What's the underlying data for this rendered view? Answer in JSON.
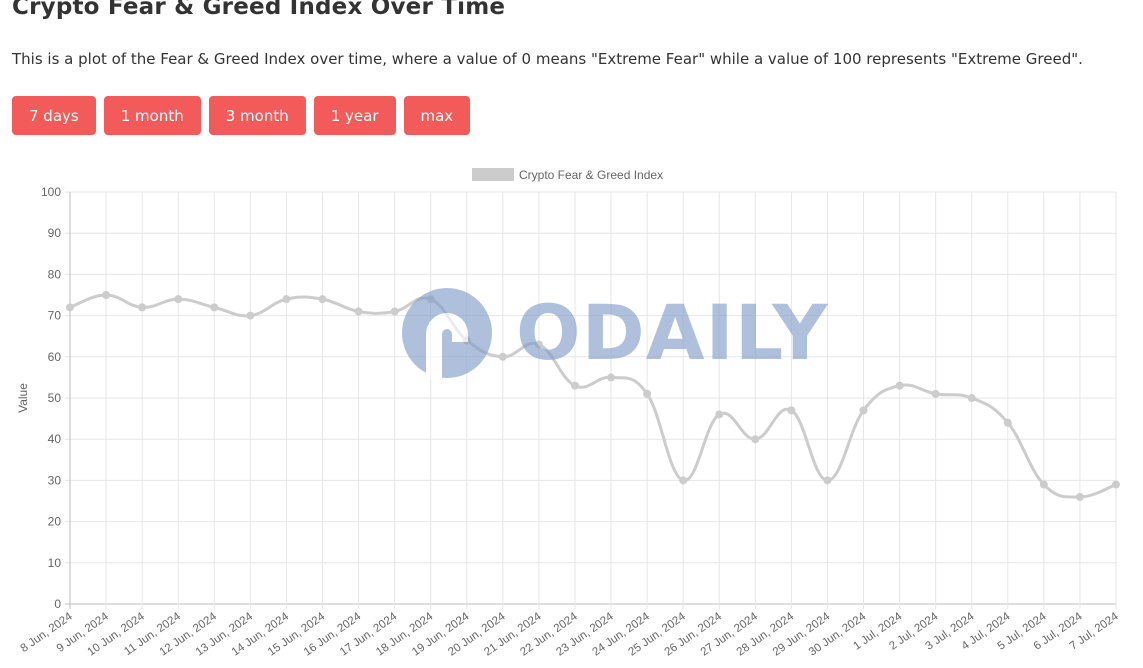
{
  "page": {
    "title": "Crypto Fear & Greed Index Over Time",
    "description": "This is a plot of the Fear & Greed Index over time, where a value of 0 means \"Extreme Fear\" while a value of 100 represents \"Extreme Greed\".",
    "buttons": [
      "7 days",
      "1 month",
      "3 month",
      "1 year",
      "max"
    ]
  },
  "watermark": {
    "text": "ODAILY"
  },
  "colors": {
    "button_bg": "#f35a5a",
    "line": "#cccccc",
    "grid": "#e6e6e6",
    "watermark": "#7f9bc9"
  },
  "chart_data": {
    "type": "line",
    "title": "",
    "xlabel": "",
    "ylabel": "Value",
    "ylim": [
      0,
      100
    ],
    "yticks": [
      0,
      10,
      20,
      30,
      40,
      50,
      60,
      70,
      80,
      90,
      100
    ],
    "grid": true,
    "legend_position": "top-center",
    "categories": [
      "8 Jun, 2024",
      "9 Jun, 2024",
      "10 Jun, 2024",
      "11 Jun, 2024",
      "12 Jun, 2024",
      "13 Jun, 2024",
      "14 Jun, 2024",
      "15 Jun, 2024",
      "16 Jun, 2024",
      "17 Jun, 2024",
      "18 Jun, 2024",
      "19 Jun, 2024",
      "20 Jun, 2024",
      "21 Jun, 2024",
      "22 Jun, 2024",
      "23 Jun, 2024",
      "24 Jun, 2024",
      "25 Jun, 2024",
      "26 Jun, 2024",
      "27 Jun, 2024",
      "28 Jun, 2024",
      "29 Jun, 2024",
      "30 Jun, 2024",
      "1 Jul, 2024",
      "2 Jul, 2024",
      "3 Jul, 2024",
      "4 Jul, 2024",
      "5 Jul, 2024",
      "6 Jul, 2024",
      "7 Jul, 2024"
    ],
    "series": [
      {
        "name": "Crypto Fear & Greed Index",
        "values": [
          72,
          75,
          72,
          74,
          72,
          70,
          74,
          74,
          71,
          71,
          74,
          64,
          60,
          63,
          53,
          55,
          51,
          30,
          46,
          40,
          47,
          30,
          47,
          53,
          51,
          50,
          44,
          29,
          26,
          29
        ]
      }
    ]
  }
}
